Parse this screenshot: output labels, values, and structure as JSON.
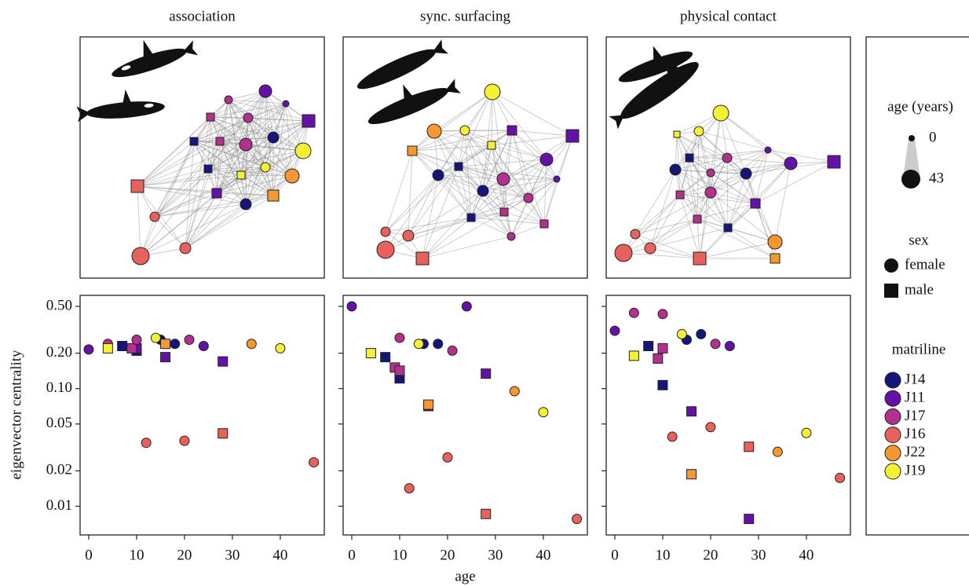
{
  "chart_data": [
    {
      "type": "scatter",
      "title": "association",
      "ylabel": "eigenvector centrality",
      "ylog": true,
      "grid": false,
      "xlim": [
        -1.8,
        49.2
      ],
      "xticks": [
        0,
        10,
        20,
        30,
        40
      ],
      "ylim": [
        0.0057,
        0.62
      ],
      "yticks": [
        0.01,
        0.02,
        0.05,
        {
          "value": 0.1,
          "label": "0.10"
        },
        {
          "value": 0.2,
          "label": "0.20"
        },
        {
          "value": 0.5,
          "label": "0.50"
        }
      ],
      "series": [
        {
          "name": "J14",
          "x": [
            7,
            10,
            15,
            18
          ],
          "values": [
            0.23,
            0.21,
            0.26,
            0.24
          ],
          "markers": [
            "square",
            "square",
            "circle",
            "circle"
          ]
        },
        {
          "name": "J11",
          "x": [
            0,
            10,
            16,
            24,
            28
          ],
          "values": [
            0.215,
            0.22,
            0.185,
            0.23,
            0.17
          ],
          "markers": [
            "circle",
            "square",
            "square",
            "circle",
            "square"
          ]
        },
        {
          "name": "J17",
          "x": [
            4,
            9,
            10,
            21
          ],
          "values": [
            0.24,
            0.22,
            0.26,
            0.26
          ],
          "markers": [
            "circle",
            "square",
            "circle",
            "circle"
          ]
        },
        {
          "name": "J16",
          "x": [
            12,
            20,
            28,
            47
          ],
          "values": [
            0.0346,
            0.036,
            0.0416,
            0.0236
          ],
          "markers": [
            "circle",
            "circle",
            "square",
            "circle"
          ]
        },
        {
          "name": "J22",
          "x": [
            16,
            34
          ],
          "values": [
            0.24,
            0.24
          ],
          "markers": [
            "square",
            "circle"
          ]
        },
        {
          "name": "J19",
          "x": [
            4,
            14,
            40
          ],
          "values": [
            0.22,
            0.27,
            0.22
          ],
          "markers": [
            "square",
            "circle",
            "circle"
          ]
        }
      ]
    },
    {
      "type": "scatter",
      "title": "sync. surfacing",
      "xlabel": "age",
      "ylog": true,
      "grid": false,
      "xlim": [
        -1.8,
        49.2
      ],
      "xticks": [
        0,
        10,
        20,
        30,
        40
      ],
      "ylim": [
        0.0057,
        0.62
      ],
      "series": [
        {
          "name": "J14",
          "x": [
            7,
            10,
            15,
            18
          ],
          "values": [
            0.185,
            0.122,
            0.24,
            0.24
          ],
          "markers": [
            "square",
            "square",
            "circle",
            "circle"
          ]
        },
        {
          "name": "J11",
          "x": [
            0,
            24,
            16,
            28
          ],
          "values": [
            0.5,
            0.5,
            0.071,
            0.134
          ],
          "markers": [
            "circle",
            "circle",
            "square",
            "square"
          ]
        },
        {
          "name": "J17",
          "x": [
            9,
            10,
            10,
            21
          ],
          "values": [
            0.151,
            0.142,
            0.27,
            0.21
          ],
          "markers": [
            "square",
            "square",
            "circle",
            "circle"
          ]
        },
        {
          "name": "J16",
          "x": [
            20,
            12,
            28,
            47
          ],
          "values": [
            0.026,
            0.0142,
            0.0086,
            0.0078
          ],
          "markers": [
            "circle",
            "circle",
            "square",
            "circle"
          ]
        },
        {
          "name": "J22",
          "x": [
            16,
            34
          ],
          "values": [
            0.073,
            0.095
          ],
          "markers": [
            "square",
            "circle"
          ]
        },
        {
          "name": "J19",
          "x": [
            4,
            14,
            40
          ],
          "values": [
            0.2,
            0.24,
            0.063
          ],
          "markers": [
            "square",
            "circle",
            "circle"
          ]
        }
      ]
    },
    {
      "type": "scatter",
      "title": "physical contact",
      "ylog": true,
      "grid": false,
      "xlim": [
        -1.8,
        49.2
      ],
      "xticks": [
        0,
        10,
        20,
        30,
        40
      ],
      "ylim": [
        0.0057,
        0.62
      ],
      "series": [
        {
          "name": "J14",
          "x": [
            7,
            10,
            15,
            18
          ],
          "values": [
            0.23,
            0.107,
            0.26,
            0.29
          ],
          "markers": [
            "square",
            "square",
            "circle",
            "circle"
          ]
        },
        {
          "name": "J11",
          "x": [
            0,
            24,
            16,
            28
          ],
          "values": [
            0.31,
            0.23,
            0.064,
            0.0078
          ],
          "markers": [
            "circle",
            "circle",
            "square",
            "square"
          ]
        },
        {
          "name": "J17",
          "x": [
            4,
            10,
            9,
            10,
            21
          ],
          "values": [
            0.44,
            0.43,
            0.18,
            0.22,
            0.24
          ],
          "markers": [
            "circle",
            "circle",
            "square",
            "square",
            "circle"
          ]
        },
        {
          "name": "J16",
          "x": [
            12,
            20,
            28,
            47
          ],
          "values": [
            0.039,
            0.047,
            0.032,
            0.0174
          ],
          "markers": [
            "circle",
            "circle",
            "square",
            "circle"
          ]
        },
        {
          "name": "J22",
          "x": [
            34,
            16
          ],
          "values": [
            0.029,
            0.0187
          ],
          "markers": [
            "circle",
            "square"
          ]
        },
        {
          "name": "J19",
          "x": [
            4,
            14,
            40
          ],
          "values": [
            0.19,
            0.29,
            0.042
          ],
          "markers": [
            "square",
            "circle",
            "circle"
          ]
        }
      ]
    }
  ],
  "legend": {
    "age_title": "age (years)",
    "age_min": 0,
    "age_max": 43,
    "sex_title": "sex",
    "female": "female",
    "male": "male",
    "matriline_title": "matriline",
    "matrilines": [
      {
        "name": "J14",
        "color": "#16167a"
      },
      {
        "name": "J11",
        "color": "#6511a8"
      },
      {
        "name": "J17",
        "color": "#b2318f"
      },
      {
        "name": "J16",
        "color": "#e7625c"
      },
      {
        "name": "J22",
        "color": "#f6982f"
      },
      {
        "name": "J19",
        "color": "#f4f034"
      }
    ]
  }
}
